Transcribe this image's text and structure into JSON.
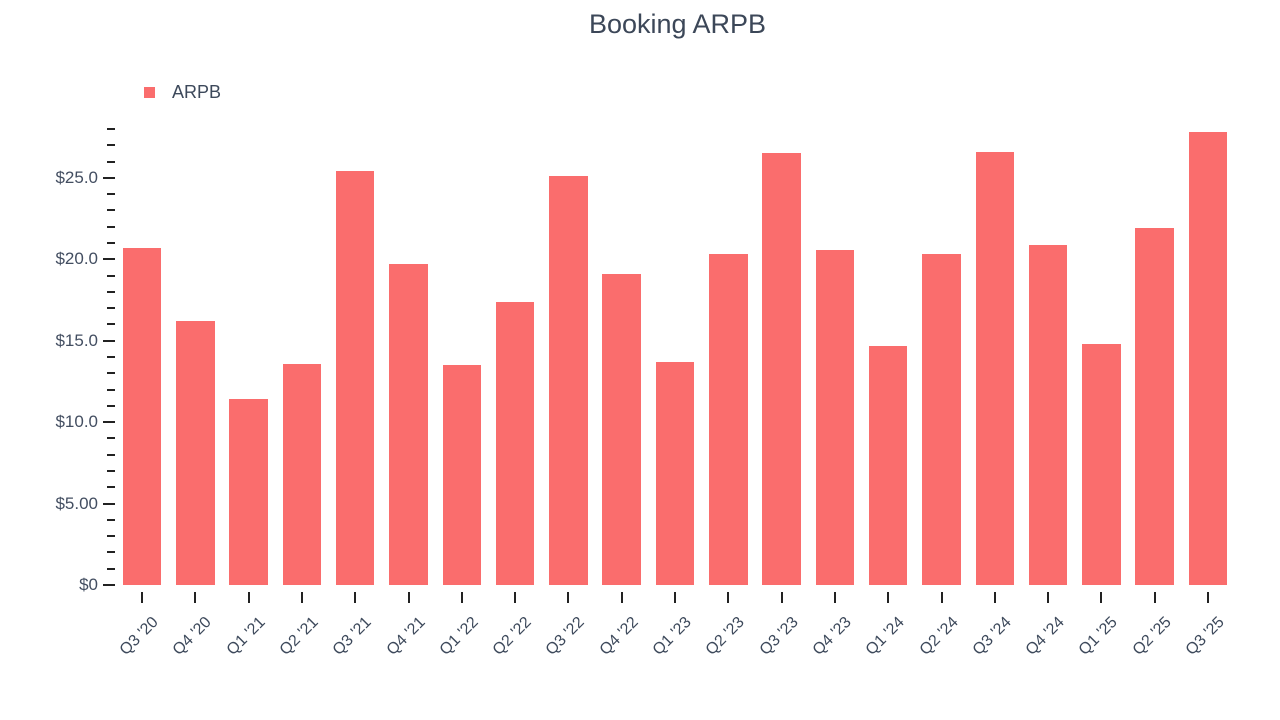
{
  "title": "Booking ARPB",
  "legend": {
    "items": [
      {
        "label": "ARPB",
        "color": "#fa6d6d"
      }
    ]
  },
  "colors": {
    "bar": "#fa6d6d",
    "title_text": "#3c4758",
    "axis_text": "#434e61",
    "tick": "#222222"
  },
  "chart_data": {
    "type": "bar",
    "title": "Booking ARPB",
    "xlabel": "",
    "ylabel": "",
    "grid": false,
    "legend_position": "top-left",
    "ylim": [
      0,
      28
    ],
    "y_minor_tick_step": 1,
    "y_major_tick_step": 5,
    "y_major_tick_labels": [
      "$0",
      "$5.00",
      "$10.0",
      "$15.0",
      "$20.0",
      "$25.0"
    ],
    "categories": [
      "Q3 '20",
      "Q4 '20",
      "Q1 '21",
      "Q2 '21",
      "Q3 '21",
      "Q4 '21",
      "Q1 '22",
      "Q2 '22",
      "Q3 '22",
      "Q4 '22",
      "Q1 '23",
      "Q2 '23",
      "Q3 '23",
      "Q4 '23",
      "Q1 '24",
      "Q2 '24",
      "Q3 '24",
      "Q4 '24",
      "Q1 '25",
      "Q2 '25",
      "Q3 '25"
    ],
    "series": [
      {
        "name": "ARPB",
        "color": "#fa6d6d",
        "values": [
          20.7,
          16.2,
          11.4,
          13.6,
          25.4,
          19.7,
          13.5,
          17.4,
          25.1,
          19.1,
          13.7,
          20.3,
          26.5,
          20.6,
          14.7,
          20.3,
          26.6,
          20.9,
          14.8,
          21.9,
          27.8
        ]
      }
    ]
  }
}
